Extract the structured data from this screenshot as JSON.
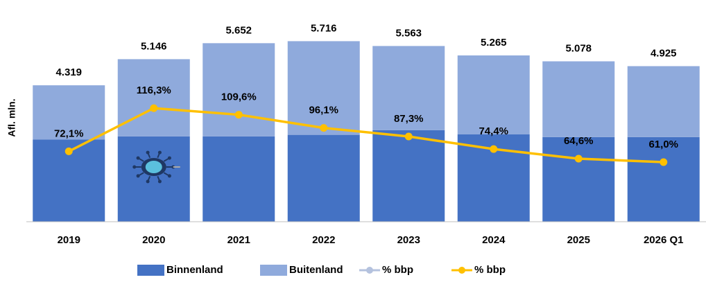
{
  "chart_data": {
    "type": "bar",
    "stacked": true,
    "y_label": "Afl. mln.",
    "categories": [
      "2019",
      "2020",
      "2021",
      "2022",
      "2023",
      "2024",
      "2025",
      "2026 Q1"
    ],
    "ylim": [
      0,
      6800
    ],
    "y2lim": [
      0,
      220
    ],
    "series": [
      {
        "type": "bar",
        "color": "#4472c4",
        "values": [
          2600,
          2700,
          2700,
          2750,
          2900,
          2770,
          2680,
          2680
        ]
      },
      {
        "type": "bar",
        "color": "#8faadc",
        "values": [
          1719,
          2446,
          2952,
          2966,
          2663,
          2495,
          2398,
          2245
        ]
      },
      {
        "type": "line",
        "axis": "y2",
        "color": "#ffc000",
        "values": [
          72.1,
          116.3,
          109.6,
          96.1,
          87.3,
          74.4,
          64.6,
          61.0
        ],
        "value_labels": [
          "72,1%",
          "116,3%",
          "109,6%",
          "96,1%",
          "87,3%",
          "74,4%",
          "64,6%",
          "61,0%"
        ]
      }
    ],
    "totals": {
      "values": [
        4319,
        5146,
        5652,
        5716,
        5563,
        5265,
        5078,
        4925
      ],
      "value_labels": [
        "4.319",
        "5.146",
        "5.652",
        "5.716",
        "5.563",
        "5.265",
        "5.078",
        "4.925"
      ]
    },
    "legend": [
      {
        "name": "Binnenland",
        "color": "#4472c4",
        "kind": "bar"
      },
      {
        "name": "Buitenland",
        "color": "#8faadc",
        "kind": "bar"
      },
      {
        "name": "% bbp",
        "color": "#b4c2de",
        "kind": "line"
      },
      {
        "name": "% bbp",
        "color": "#ffc000",
        "kind": "line"
      }
    ]
  }
}
